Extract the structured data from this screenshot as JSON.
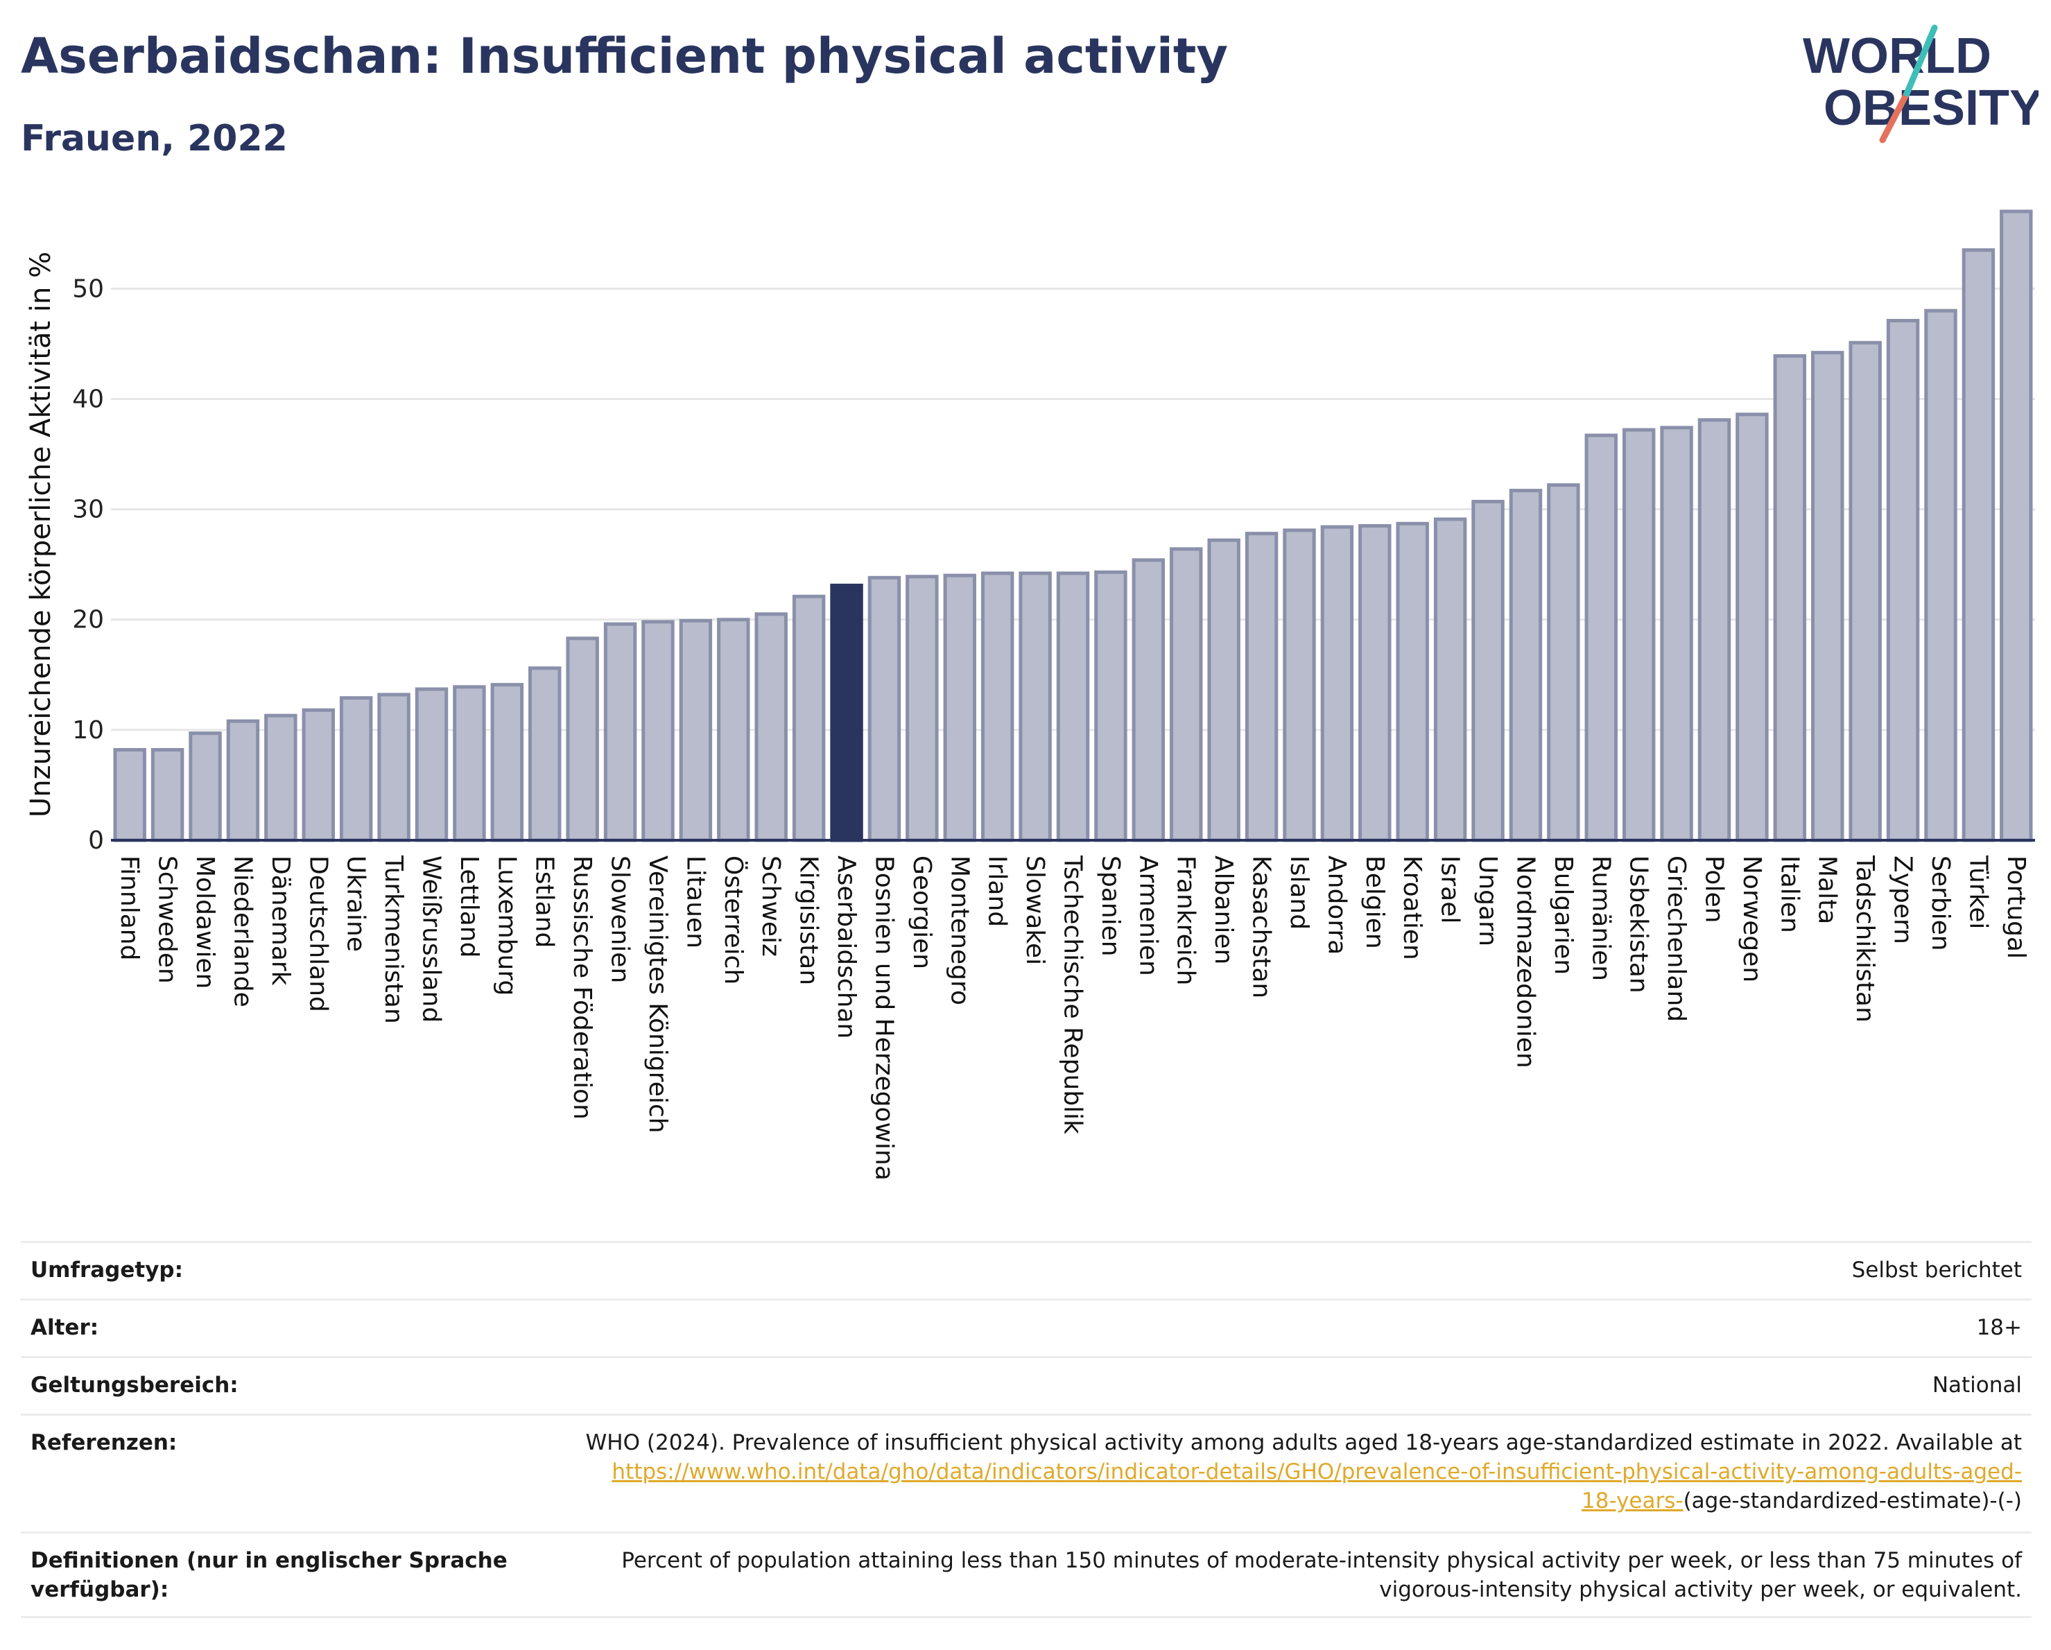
{
  "title": "Aserbaidschan: Insufficient physical activity",
  "subtitle": "Frauen, 2022",
  "logo": {
    "line1": "WORLD",
    "line2": "OBESITY"
  },
  "colors": {
    "bar": "#b8bccc",
    "bar_edge": "#8a90aa",
    "highlight": "#2a355f",
    "axis": "#2a355f",
    "grid": "#e6e6e6"
  },
  "chart_data": {
    "type": "bar",
    "ylabel": "Unzureichende körperliche Aktivität in %",
    "xlabel": "",
    "ylim": [
      0,
      57.5
    ],
    "yticks": [
      0,
      10,
      20,
      30,
      40,
      50
    ],
    "grid": "horizontal",
    "highlight": "Aserbaidschan",
    "categories": [
      "Finnland",
      "Schweden",
      "Moldawien",
      "Niederlande",
      "Dänemark",
      "Deutschland",
      "Ukraine",
      "Turkmenistan",
      "Weißrussland",
      "Lettland",
      "Luxemburg",
      "Estland",
      "Russische Föderation",
      "Slowenien",
      "Vereinigtes Königreich",
      "Litauen",
      "Österreich",
      "Schweiz",
      "Kirgisistan",
      "Aserbaidschan",
      "Bosnien und Herzegowina",
      "Georgien",
      "Montenegro",
      "Irland",
      "Slowakei",
      "Tschechische Republik",
      "Spanien",
      "Armenien",
      "Frankreich",
      "Albanien",
      "Kasachstan",
      "Island",
      "Andorra",
      "Belgien",
      "Kroatien",
      "Israel",
      "Ungarn",
      "Nordmazedonien",
      "Bulgarien",
      "Rumänien",
      "Usbekistan",
      "Griechenland",
      "Polen",
      "Norwegen",
      "Italien",
      "Malta",
      "Tadschikistan",
      "Zypern",
      "Serbien",
      "Türkei",
      "Portugal"
    ],
    "values": [
      8.2,
      8.2,
      9.7,
      10.8,
      11.3,
      11.8,
      12.9,
      13.2,
      13.7,
      13.9,
      14.1,
      15.6,
      18.3,
      19.6,
      19.8,
      19.9,
      20.0,
      20.5,
      22.1,
      23.1,
      23.8,
      23.9,
      24.0,
      24.2,
      24.2,
      24.2,
      24.3,
      25.4,
      26.4,
      27.2,
      27.8,
      28.1,
      28.4,
      28.5,
      28.7,
      29.1,
      30.7,
      31.7,
      32.2,
      36.7,
      37.2,
      37.4,
      38.1,
      38.6,
      43.9,
      44.2,
      45.1,
      47.1,
      48.0,
      53.5,
      57.0
    ]
  },
  "info": {
    "survey_type_label": "Umfragetyp:",
    "survey_type_value": "Selbst berichtet",
    "age_label": "Alter:",
    "age_value": "18+",
    "scope_label": "Geltungsbereich:",
    "scope_value": "National",
    "references_label": "Referenzen:",
    "references_text": "WHO (2024). Prevalence of insufficient physical activity among adults aged 18-years age-standardized estimate in 2022. Available at",
    "references_link_1": "https://www.who.int/data/gho/data/indicators/indicator-details/GHO/prevalence-of-insufficient-physical-activity-among-adults-aged-",
    "references_link_2": "18-years-",
    "references_tail": "(age-standardized-estimate)-(-)",
    "definitions_label": "Definitionen (nur in englischer Sprache verfügbar):",
    "definitions_text": "Percent of population attaining less than 150 minutes of moderate-intensity physical activity per week, or less than 75 minutes of vigorous-intensity physical activity per week, or equivalent."
  }
}
